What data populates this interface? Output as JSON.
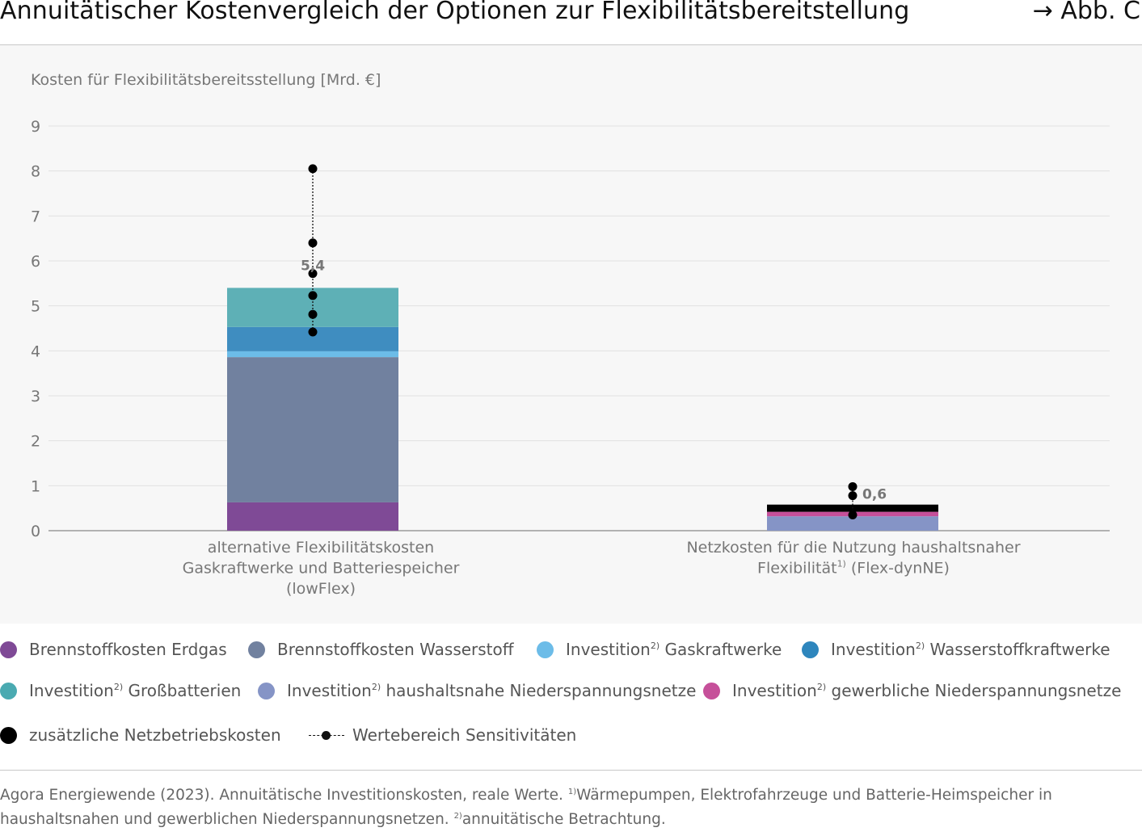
{
  "header": {
    "title": "Annuitätischer Kostenvergleich der Optionen zur Flexibilitätsbereitstellung",
    "figure_ref": "→ Abb. C"
  },
  "chart_data": {
    "type": "bar",
    "stacked": true,
    "ylabel": "Kosten für Flexibilitätsbereitsstellung [Mrd. €]",
    "ylim": [
      0,
      9
    ],
    "yticks": [
      0,
      1,
      2,
      3,
      4,
      5,
      6,
      7,
      8,
      9
    ],
    "grid": true,
    "categories": [
      {
        "label_lines": [
          "alternative Flexibilitätskosten",
          "Gaskraftwerke und Batteriespeicher",
          "(lowFlex)"
        ]
      },
      {
        "label_lines": [
          "Netzkosten für die Nutzung haushaltsnaher",
          "Flexibilität",
          "1)",
          " (Flex-dynNE)"
        ]
      }
    ],
    "series": [
      {
        "name": "Brennstoffkosten Erdgas",
        "color": "#7f4a96",
        "values": [
          0.63,
          0
        ]
      },
      {
        "name": "Brennstoffkosten Wasserstoff",
        "color": "#71819f",
        "values": [
          3.23,
          0
        ]
      },
      {
        "name": "Investition 2) Gaskraftwerke",
        "color": "#6cbce8",
        "values": [
          0.13,
          0
        ]
      },
      {
        "name": "Investition 2) Wasserstoffkraftwerke",
        "color": "#3f8dc0",
        "values": [
          0.54,
          0
        ]
      },
      {
        "name": "Investition 2) Großbatterien",
        "color": "#5eb0b6",
        "values": [
          0.87,
          0
        ]
      },
      {
        "name": "Investition 2) haushaltsnahe Niederspannungsnetze",
        "color": "#8594c6",
        "values": [
          0,
          0.32
        ]
      },
      {
        "name": "Investition 2) gewerbliche Niederspannungsnetze",
        "color": "#c6509a",
        "values": [
          0,
          0.1
        ]
      },
      {
        "name": "zusätzliche Netzbetriebskosten",
        "color": "#000000",
        "values": [
          0,
          0.16
        ]
      }
    ],
    "totals": [
      5.4,
      0.6
    ],
    "total_labels": [
      "5,4",
      "0,6"
    ],
    "sensitivity": [
      {
        "points": [
          4.42,
          4.81,
          5.23,
          5.72,
          6.4,
          8.05
        ],
        "range": [
          4.42,
          8.05
        ]
      },
      {
        "points": [
          0.35,
          0.78,
          0.98
        ],
        "range": [
          0.35,
          0.98
        ]
      }
    ]
  },
  "legend": {
    "items": [
      {
        "name": "Brennstoffkosten Erdgas",
        "text": "Brennstoffkosten Erdgas",
        "sup": "",
        "rest": "",
        "color": "#7f4a96"
      },
      {
        "name": "Brennstoffkosten Wasserstoff",
        "text": "Brennstoffkosten Wasserstoff",
        "sup": "",
        "rest": "",
        "color": "#71819f"
      },
      {
        "name": "Investition Gaskraftwerke",
        "text": "Investition",
        "sup": "2)",
        "rest": " Gaskraftwerke",
        "color": "#6cbce8"
      },
      {
        "name": "Investition Wasserstoffkraftwerke",
        "text": "Investition",
        "sup": "2)",
        "rest": " Wasserstoffkraftwerke",
        "color": "#2e86bd"
      },
      {
        "name": "Investition Großbatterien",
        "text": "Investition",
        "sup": "2)",
        "rest": " Großbatterien",
        "color": "#4aaab1"
      },
      {
        "name": "Investition haushaltsnahe Niederspannungsnetze",
        "text": "Investition",
        "sup": "2)",
        "rest": " haushaltsnahe Niederspannungsnetze",
        "color": "#8594c6"
      },
      {
        "name": "Investition gewerbliche Niederspannungsnetze",
        "text": "Investition",
        "sup": "2)",
        "rest": " gewerbliche Niederspannungsnetze",
        "color": "#c6509a"
      },
      {
        "name": "zusätzliche Netzbetriebskosten",
        "text": "zusätzliche Netzbetriebskosten",
        "sup": "",
        "rest": "",
        "color": "#000000"
      }
    ],
    "sensitivity_label": "Wertebereich Sensitivitäten"
  },
  "footer": {
    "part1": "Agora Energiewende (2023). Annuitätische Investitionskosten, reale Werte. ",
    "sup1": "1)",
    "part2": "Wärmepumpen, Elektrofahrzeuge und Batterie-Heimspeicher in haushaltsnahen und gewerblichen Niederspannungsnetzen. ",
    "sup2": "2)",
    "part3": "annuitätische Betrachtung."
  }
}
